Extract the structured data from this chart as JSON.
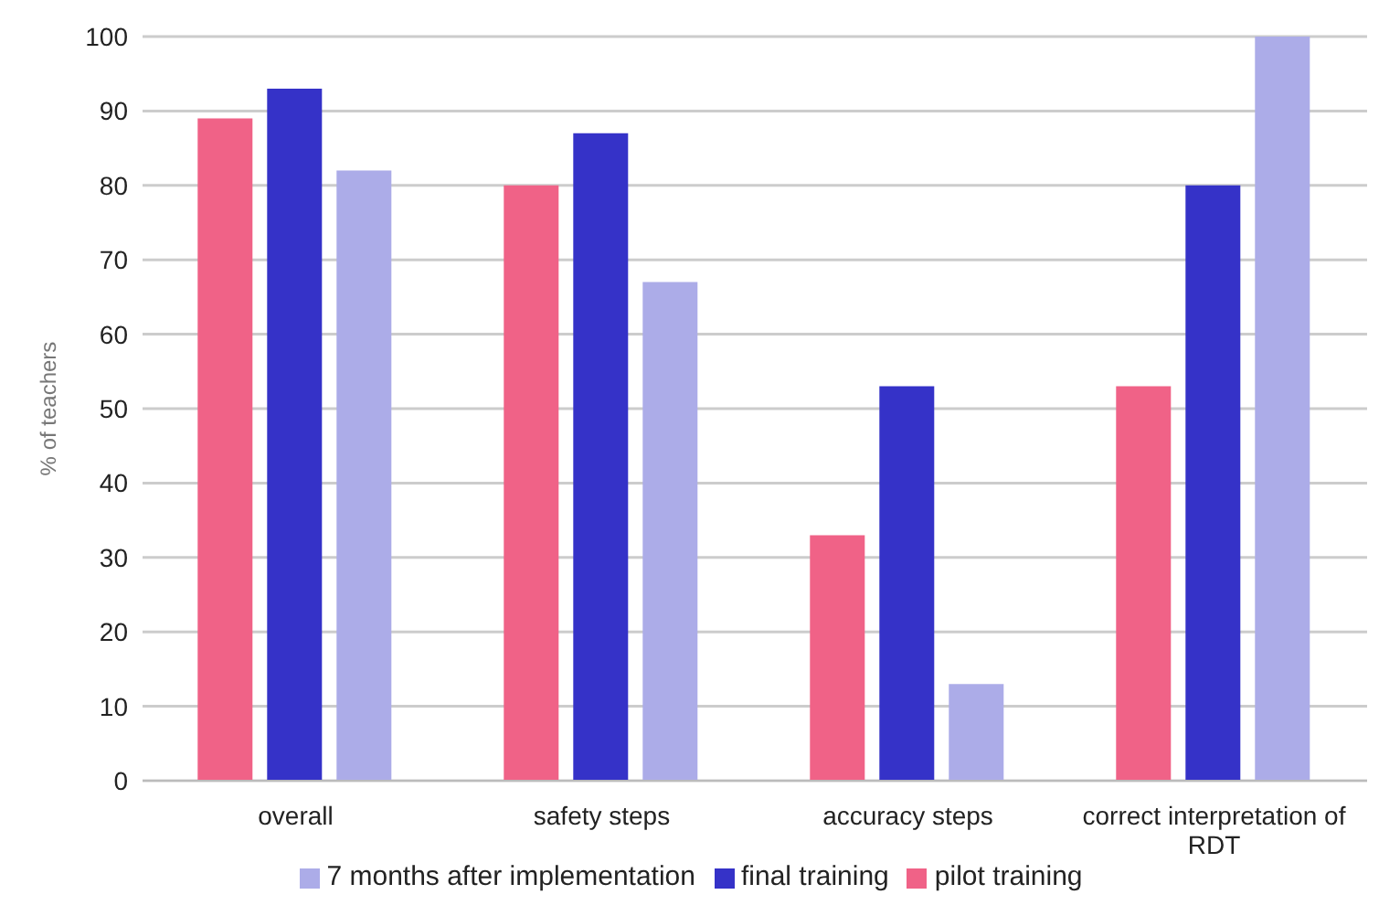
{
  "chart_data": {
    "type": "bar",
    "ylabel": "% of teachers",
    "categories": [
      "overall",
      "safety steps",
      "accuracy steps",
      "correct interpretation of RDT"
    ],
    "series": [
      {
        "name": "pilot training",
        "color": "#f06287",
        "values": [
          89,
          80,
          33,
          53
        ]
      },
      {
        "name": "final training",
        "color": "#3532c8",
        "values": [
          93,
          87,
          53,
          80
        ]
      },
      {
        "name": "7 months after implementation",
        "color": "#acace8",
        "values": [
          82,
          67,
          13,
          100
        ]
      }
    ],
    "ylim": [
      0,
      100
    ],
    "yticks": [
      0,
      10,
      20,
      30,
      40,
      50,
      60,
      70,
      80,
      90,
      100
    ],
    "grid": "y",
    "legend": "bottom"
  }
}
